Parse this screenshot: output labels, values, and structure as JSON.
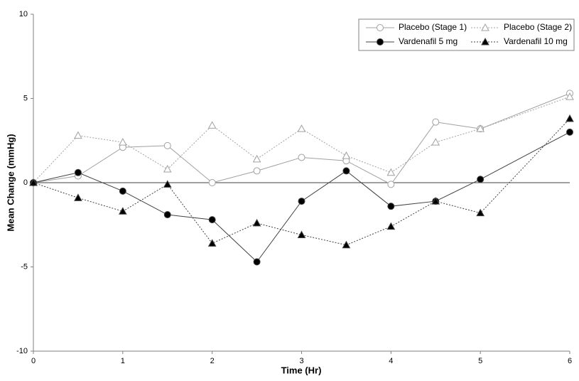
{
  "chart_data": {
    "type": "line",
    "x_label": "Time (Hr)",
    "y_label": "Mean Change (mmHg)",
    "xlim": [
      0,
      6
    ],
    "xticks": [
      0,
      1,
      2,
      3,
      4,
      5,
      6
    ],
    "ylim": [
      -10,
      10
    ],
    "yticks": [
      -10,
      -5,
      0,
      5,
      10
    ],
    "legend": "upper-right",
    "series": [
      {
        "name": "Placebo (Stage 1)",
        "color": "#a0a0a0",
        "marker": "circle",
        "marker_fill": "#ffffff",
        "dash": "solid",
        "x": [
          0,
          0.5,
          1,
          1.5,
          2,
          2.5,
          3,
          3.5,
          4,
          4.5,
          5,
          6
        ],
        "values": [
          0,
          0.4,
          2.1,
          2.2,
          0,
          0.7,
          1.5,
          1.3,
          -0.1,
          3.6,
          3.2,
          5.3
        ]
      },
      {
        "name": "Vardenafil 5 mg",
        "color": "#404040",
        "marker": "circle",
        "marker_fill": "#000000",
        "dash": "solid",
        "x": [
          0,
          0.5,
          1,
          1.5,
          2,
          2.5,
          3,
          3.5,
          4,
          4.5,
          5,
          6
        ],
        "values": [
          0,
          0.6,
          -0.5,
          -1.9,
          -2.2,
          -4.7,
          -1.1,
          0.7,
          -1.4,
          -1.1,
          0.2,
          3.0
        ]
      },
      {
        "name": "Placebo (Stage 2)",
        "color": "#a0a0a0",
        "marker": "triangle",
        "marker_fill": "#ffffff",
        "dash": "dotted",
        "x": [
          0,
          0.5,
          1,
          1.5,
          2,
          2.5,
          3,
          3.5,
          4,
          4.5,
          5,
          6
        ],
        "values": [
          0,
          2.8,
          2.4,
          0.8,
          3.4,
          1.4,
          3.2,
          1.6,
          0.6,
          2.4,
          3.2,
          5.1
        ]
      },
      {
        "name": "Vardenafil 10 mg",
        "color": "#404040",
        "marker": "triangle",
        "marker_fill": "#000000",
        "dash": "dotted",
        "x": [
          0,
          0.5,
          1,
          1.5,
          2,
          2.5,
          3,
          3.5,
          4,
          4.5,
          5,
          6
        ],
        "values": [
          0,
          -0.9,
          -1.7,
          -0.1,
          -3.6,
          -2.4,
          -3.1,
          -3.7,
          -2.6,
          -1.1,
          -1.8,
          3.8
        ]
      }
    ]
  }
}
